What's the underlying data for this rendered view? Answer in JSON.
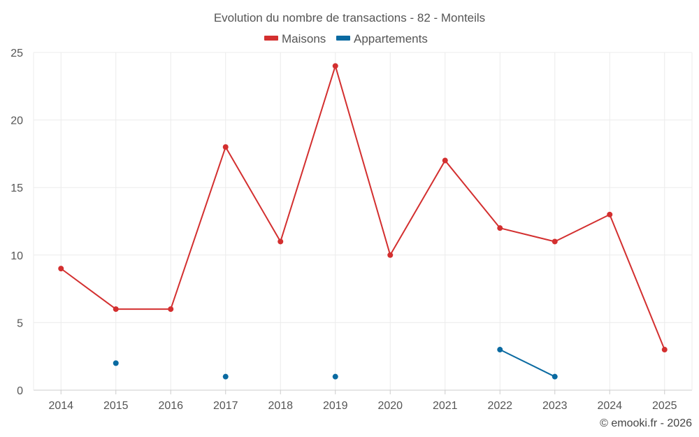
{
  "chart_data": {
    "type": "line",
    "title": "Evolution du nombre de transactions - 82 - Monteils",
    "x": [
      "2014",
      "2015",
      "2016",
      "2017",
      "2018",
      "2019",
      "2020",
      "2021",
      "2022",
      "2023",
      "2024",
      "2025"
    ],
    "series": [
      {
        "name": "Maisons",
        "color": "#d32f2f",
        "values": [
          9,
          6,
          6,
          18,
          11,
          24,
          10,
          17,
          12,
          11,
          13,
          3
        ]
      },
      {
        "name": "Appartements",
        "color": "#0a6aa1",
        "values": [
          null,
          2,
          null,
          1,
          null,
          1,
          null,
          null,
          3,
          1,
          null,
          null
        ]
      }
    ],
    "ylim": [
      0,
      25
    ],
    "yticks": [
      0,
      5,
      10,
      15,
      20,
      25
    ],
    "xlabel": "",
    "ylabel": "",
    "grid": true,
    "legend": "top-center"
  },
  "credit": "© emooki.fr - 2026"
}
